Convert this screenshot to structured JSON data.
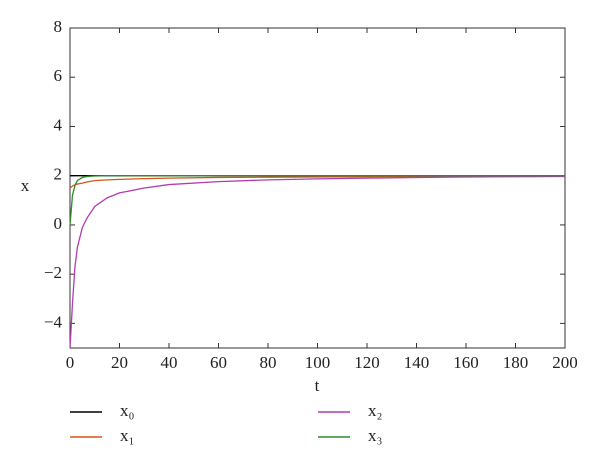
{
  "chart_data": {
    "type": "line",
    "x": [
      0,
      1,
      2,
      3,
      5,
      7,
      10,
      15,
      20,
      30,
      40,
      60,
      80,
      100,
      120,
      140,
      160,
      180,
      200
    ],
    "series": [
      {
        "name": "x₀",
        "color": "#000000",
        "values": [
          2,
          2,
          2,
          2,
          2,
          2,
          2,
          2,
          2,
          2,
          2,
          2,
          2,
          2,
          2,
          2,
          2,
          2,
          2
        ]
      },
      {
        "name": "x₁",
        "color": "#d95319",
        "values": [
          1.5,
          1.58,
          1.63,
          1.66,
          1.7,
          1.75,
          1.8,
          1.83,
          1.85,
          1.88,
          1.9,
          1.93,
          1.94,
          1.95,
          1.96,
          1.97,
          1.97,
          1.98,
          1.98
        ]
      },
      {
        "name": "x₂",
        "color": "#b03cb0",
        "values": [
          -5,
          -3.2,
          -1.7,
          -0.9,
          -0.1,
          0.3,
          0.75,
          1.1,
          1.3,
          1.5,
          1.64,
          1.76,
          1.83,
          1.87,
          1.9,
          1.93,
          1.95,
          1.96,
          1.97
        ]
      },
      {
        "name": "x₃",
        "color": "#2e8b2e",
        "values": [
          0,
          1.2,
          1.6,
          1.8,
          1.93,
          1.97,
          1.99,
          2,
          2,
          2,
          2,
          2,
          2,
          2,
          2,
          2,
          2,
          2,
          2
        ]
      }
    ],
    "xlabel": "t",
    "ylabel": "x",
    "xlim": [
      0,
      200
    ],
    "xticks": [
      0,
      20,
      40,
      60,
      80,
      100,
      120,
      140,
      160,
      180,
      200
    ],
    "ylim": [
      -5,
      8
    ],
    "yticks": [
      {
        "value": -4,
        "label": "−4"
      },
      {
        "value": -2,
        "label": "−2"
      },
      0,
      2,
      4,
      6,
      8
    ]
  }
}
